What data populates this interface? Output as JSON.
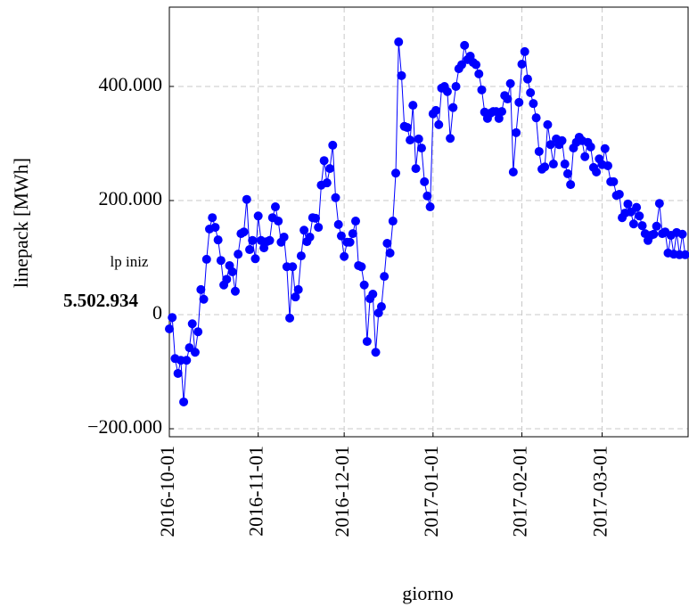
{
  "chart_data": {
    "type": "line",
    "ylabel": "linepack [MWh]",
    "xlabel": "giorno",
    "annotation_label": "lp iniz",
    "annotation_value": "5.502.934",
    "x": [
      "2016-10-01",
      "2016-10-02",
      "2016-10-03",
      "2016-10-04",
      "2016-10-05",
      "2016-10-06",
      "2016-10-07",
      "2016-10-08",
      "2016-10-09",
      "2016-10-10",
      "2016-10-11",
      "2016-10-12",
      "2016-10-13",
      "2016-10-14",
      "2016-10-15",
      "2016-10-16",
      "2016-10-17",
      "2016-10-18",
      "2016-10-19",
      "2016-10-20",
      "2016-10-21",
      "2016-10-22",
      "2016-10-23",
      "2016-10-24",
      "2016-10-25",
      "2016-10-26",
      "2016-10-27",
      "2016-10-28",
      "2016-10-29",
      "2016-10-30",
      "2016-10-31",
      "2016-11-01",
      "2016-11-02",
      "2016-11-03",
      "2016-11-04",
      "2016-11-05",
      "2016-11-06",
      "2016-11-07",
      "2016-11-08",
      "2016-11-09",
      "2016-11-10",
      "2016-11-11",
      "2016-11-12",
      "2016-11-13",
      "2016-11-14",
      "2016-11-15",
      "2016-11-16",
      "2016-11-17",
      "2016-11-18",
      "2016-11-19",
      "2016-11-20",
      "2016-11-21",
      "2016-11-22",
      "2016-11-23",
      "2016-11-24",
      "2016-11-25",
      "2016-11-26",
      "2016-11-27",
      "2016-11-28",
      "2016-11-29",
      "2016-11-30",
      "2016-12-01",
      "2016-12-02",
      "2016-12-03",
      "2016-12-04",
      "2016-12-05",
      "2016-12-06",
      "2016-12-07",
      "2016-12-08",
      "2016-12-09",
      "2016-12-10",
      "2016-12-11",
      "2016-12-12",
      "2016-12-13",
      "2016-12-14",
      "2016-12-15",
      "2016-12-16",
      "2016-12-17",
      "2016-12-18",
      "2016-12-19",
      "2016-12-20",
      "2016-12-21",
      "2016-12-22",
      "2016-12-23",
      "2016-12-24",
      "2016-12-25",
      "2016-12-26",
      "2016-12-27",
      "2016-12-28",
      "2016-12-29",
      "2016-12-30",
      "2016-12-31",
      "2017-01-01",
      "2017-01-02",
      "2017-01-03",
      "2017-01-04",
      "2017-01-05",
      "2017-01-06",
      "2017-01-07",
      "2017-01-08",
      "2017-01-09",
      "2017-01-10",
      "2017-01-11",
      "2017-01-12",
      "2017-01-13",
      "2017-01-14",
      "2017-01-15",
      "2017-01-16",
      "2017-01-17",
      "2017-01-18",
      "2017-01-19",
      "2017-01-20",
      "2017-01-21",
      "2017-01-22",
      "2017-01-23",
      "2017-01-24",
      "2017-01-25",
      "2017-01-26",
      "2017-01-27",
      "2017-01-28",
      "2017-01-29",
      "2017-01-30",
      "2017-01-31",
      "2017-02-01",
      "2017-02-02",
      "2017-02-03",
      "2017-02-04",
      "2017-02-05",
      "2017-02-06",
      "2017-02-07",
      "2017-02-08",
      "2017-02-09",
      "2017-02-10",
      "2017-02-11",
      "2017-02-12",
      "2017-02-13",
      "2017-02-14",
      "2017-02-15",
      "2017-02-16",
      "2017-02-17",
      "2017-02-18",
      "2017-02-19",
      "2017-02-20",
      "2017-02-21",
      "2017-02-22",
      "2017-02-23",
      "2017-02-24",
      "2017-02-25",
      "2017-02-26",
      "2017-02-27",
      "2017-02-28",
      "2017-03-01",
      "2017-03-02",
      "2017-03-03",
      "2017-03-04",
      "2017-03-05",
      "2017-03-06",
      "2017-03-07",
      "2017-03-08",
      "2017-03-09",
      "2017-03-10",
      "2017-03-11",
      "2017-03-12",
      "2017-03-13",
      "2017-03-14",
      "2017-03-15",
      "2017-03-16",
      "2017-03-17",
      "2017-03-18",
      "2017-03-19",
      "2017-03-20",
      "2017-03-21",
      "2017-03-22",
      "2017-03-23",
      "2017-03-24",
      "2017-03-25",
      "2017-03-26",
      "2017-03-27",
      "2017-03-28",
      "2017-03-29",
      "2017-03-30"
    ],
    "series": [
      {
        "color": "#0000ff",
        "values": [
          -25000,
          -5000,
          -77000,
          -103000,
          -80000,
          -153000,
          -80000,
          -58000,
          -16000,
          -66000,
          -30000,
          44000,
          27000,
          97000,
          150000,
          170000,
          153000,
          131000,
          95000,
          52000,
          62000,
          86000,
          75000,
          41000,
          106000,
          142000,
          145000,
          202000,
          114000,
          130000,
          98000,
          173000,
          130000,
          117000,
          128000,
          130000,
          170000,
          189000,
          164000,
          127000,
          136000,
          84000,
          -6000,
          84000,
          31000,
          44000,
          103000,
          148000,
          128000,
          136000,
          170000,
          169000,
          153000,
          227000,
          270000,
          231000,
          256000,
          297000,
          205000,
          158000,
          138000,
          102000,
          127000,
          127000,
          142000,
          164000,
          86000,
          84000,
          52000,
          -47000,
          28000,
          36000,
          -66000,
          3000,
          14000,
          67000,
          125000,
          108000,
          164000,
          248000,
          478000,
          419000,
          330000,
          328000,
          306000,
          367000,
          256000,
          308000,
          292000,
          233000,
          208000,
          189000,
          352000,
          358000,
          333000,
          397000,
          400000,
          391000,
          309000,
          363000,
          400000,
          431000,
          438000,
          472000,
          447000,
          453000,
          442000,
          438000,
          422000,
          394000,
          355000,
          344000,
          353000,
          356000,
          356000,
          344000,
          356000,
          384000,
          378000,
          405000,
          250000,
          319000,
          372000,
          439000,
          461000,
          413000,
          389000,
          370000,
          345000,
          286000,
          255000,
          259000,
          333000,
          298000,
          264000,
          308000,
          298000,
          305000,
          264000,
          247000,
          228000,
          292000,
          302000,
          311000,
          305000,
          277000,
          302000,
          294000,
          258000,
          250000,
          273000,
          263000,
          291000,
          261000,
          233000,
          233000,
          209000,
          211000,
          170000,
          178000,
          194000,
          180000,
          159000,
          188000,
          173000,
          156000,
          142000,
          130000,
          139000,
          141000,
          155000,
          195000,
          142000,
          145000,
          108000,
          139000,
          106000,
          144000,
          105000,
          141000,
          105000
        ]
      }
    ],
    "xlim": [
      "2016-10-01",
      "2017-03-31"
    ],
    "xticks": [
      "2016-10-01",
      "2016-11-01",
      "2016-12-01",
      "2017-01-01",
      "2017-02-01",
      "2017-03-01"
    ],
    "ylim": [
      -214000,
      539000
    ],
    "yticks": [
      {
        "value": -200000,
        "label": "−200.000"
      },
      0,
      {
        "value": 200000,
        "label": "200.000"
      },
      {
        "value": 400000,
        "label": "400.000"
      }
    ],
    "grid": true
  }
}
